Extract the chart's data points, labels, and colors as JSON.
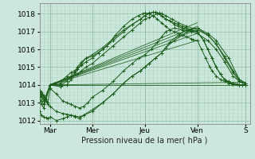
{
  "title": "",
  "xlabel": "Pression niveau de la mer( hPa )",
  "ylabel": "",
  "bg_color": "#cce8dc",
  "grid_color_minor": "#b0d4c4",
  "grid_color_major": "#90bca8",
  "line_color": "#1a5c18",
  "xlim": [
    0.0,
    5.0
  ],
  "ylim": [
    1011.8,
    1018.6
  ],
  "yticks": [
    1012,
    1013,
    1014,
    1015,
    1016,
    1017,
    1018
  ],
  "xtick_labels": [
    "Mar",
    "Mer",
    "Jeu",
    "Ven",
    "S"
  ],
  "xtick_positions": [
    0.25,
    1.25,
    2.5,
    3.75,
    4.9
  ],
  "day_vlines": [
    0.25,
    1.25,
    2.5,
    3.75,
    4.9
  ],
  "series": [
    {
      "x": [
        0.0,
        0.05,
        0.1,
        0.15,
        0.25,
        0.35,
        0.5,
        0.65,
        0.75,
        0.9,
        1.0,
        1.1,
        1.25,
        1.4,
        1.6,
        1.8,
        2.0,
        2.2,
        2.35,
        2.45,
        2.5,
        2.6,
        2.7,
        2.8,
        2.9,
        3.0,
        3.1,
        3.2,
        3.3,
        3.4,
        3.5,
        3.6,
        3.65,
        3.75,
        3.85,
        3.95,
        4.05,
        4.1,
        4.2,
        4.3,
        4.4,
        4.5,
        4.6,
        4.7,
        4.75,
        4.82,
        4.9
      ],
      "y": [
        1013.7,
        1013.6,
        1013.4,
        1013.2,
        1014.0,
        1014.1,
        1014.2,
        1014.5,
        1014.7,
        1014.9,
        1015.1,
        1015.3,
        1015.5,
        1015.8,
        1016.2,
        1016.8,
        1017.3,
        1017.7,
        1017.9,
        1018.0,
        1018.05,
        1018.0,
        1017.9,
        1017.7,
        1017.5,
        1017.3,
        1017.1,
        1017.0,
        1016.9,
        1016.8,
        1016.7,
        1016.6,
        1016.55,
        1016.5,
        1016.0,
        1015.5,
        1015.0,
        1014.8,
        1014.5,
        1014.3,
        1014.2,
        1014.1,
        1014.1,
        1014.05,
        1014.0,
        1014.0,
        1014.0
      ]
    },
    {
      "x": [
        0.0,
        0.05,
        0.1,
        0.25,
        0.5,
        0.75,
        0.9,
        1.0,
        1.1,
        1.25,
        1.5,
        1.75,
        2.0,
        2.2,
        2.4,
        2.5,
        2.6,
        2.7,
        2.8,
        2.85,
        2.9,
        3.0,
        3.1,
        3.2,
        3.3,
        3.4,
        3.5,
        3.6,
        3.75,
        3.9,
        4.0,
        4.1,
        4.2,
        4.3,
        4.4,
        4.5,
        4.6,
        4.75,
        4.9
      ],
      "y": [
        1013.5,
        1013.3,
        1013.1,
        1014.0,
        1014.1,
        1014.4,
        1014.6,
        1014.8,
        1015.0,
        1015.2,
        1015.7,
        1016.2,
        1016.7,
        1017.1,
        1017.5,
        1017.7,
        1017.8,
        1017.9,
        1018.0,
        1018.05,
        1017.9,
        1017.7,
        1017.6,
        1017.4,
        1017.3,
        1017.2,
        1017.1,
        1017.05,
        1017.0,
        1016.5,
        1016.0,
        1015.5,
        1015.0,
        1014.6,
        1014.3,
        1014.1,
        1014.05,
        1014.0,
        1014.0
      ]
    },
    {
      "x": [
        0.0,
        0.05,
        0.1,
        0.25,
        0.5,
        0.65,
        0.75,
        0.85,
        0.9,
        1.0,
        1.1,
        1.25,
        1.5,
        1.75,
        2.0,
        2.2,
        2.4,
        2.5,
        2.6,
        2.7,
        2.8,
        2.9,
        3.0,
        3.1,
        3.2,
        3.3,
        3.4,
        3.5,
        3.6,
        3.75,
        3.9,
        4.0,
        4.1,
        4.2,
        4.3,
        4.4,
        4.5,
        4.6,
        4.75,
        4.9
      ],
      "y": [
        1013.3,
        1013.1,
        1012.9,
        1014.0,
        1014.0,
        1014.2,
        1014.5,
        1014.8,
        1015.0,
        1015.3,
        1015.5,
        1015.6,
        1016.0,
        1016.5,
        1017.0,
        1017.4,
        1017.7,
        1017.9,
        1018.0,
        1018.1,
        1018.0,
        1017.9,
        1017.7,
        1017.6,
        1017.5,
        1017.4,
        1017.3,
        1017.2,
        1017.1,
        1017.0,
        1016.5,
        1016.0,
        1015.5,
        1015.0,
        1014.6,
        1014.3,
        1014.2,
        1014.05,
        1014.0,
        1014.0
      ]
    },
    {
      "x": [
        0.0,
        0.05,
        0.1,
        0.25,
        0.5,
        0.65,
        0.75,
        0.85,
        1.0,
        1.1,
        1.25,
        1.5,
        1.75,
        2.0,
        2.2,
        2.4,
        2.5,
        2.6,
        2.75,
        2.9,
        3.0,
        3.15,
        3.3,
        3.5,
        3.75,
        4.0,
        4.2,
        4.4,
        4.6,
        4.75,
        4.9
      ],
      "y": [
        1013.1,
        1012.9,
        1012.7,
        1014.0,
        1013.9,
        1014.0,
        1014.3,
        1014.7,
        1015.2,
        1015.5,
        1015.7,
        1016.1,
        1016.6,
        1017.1,
        1017.4,
        1017.7,
        1017.9,
        1018.05,
        1018.1,
        1018.0,
        1017.9,
        1017.7,
        1017.5,
        1017.3,
        1017.1,
        1016.8,
        1016.3,
        1015.6,
        1014.8,
        1014.3,
        1014.1
      ]
    },
    {
      "x": [
        0.0,
        0.05,
        0.1,
        0.2,
        0.25,
        0.4,
        0.55,
        0.65,
        0.75,
        0.85,
        0.95,
        1.05,
        1.15,
        1.25,
        1.5,
        1.75,
        2.0,
        2.2,
        2.35,
        2.5,
        2.65,
        2.8,
        2.9,
        3.0,
        3.1,
        3.2,
        3.4,
        3.6,
        3.75,
        4.0,
        4.2,
        4.4,
        4.6,
        4.75,
        4.9
      ],
      "y": [
        1013.6,
        1013.4,
        1013.2,
        1013.0,
        1013.8,
        1013.5,
        1013.1,
        1013.0,
        1012.9,
        1012.8,
        1012.7,
        1012.8,
        1013.0,
        1013.3,
        1013.7,
        1014.2,
        1014.8,
        1015.2,
        1015.5,
        1015.7,
        1016.0,
        1016.4,
        1016.7,
        1017.0,
        1017.1,
        1017.2,
        1017.1,
        1017.0,
        1016.9,
        1016.5,
        1016.0,
        1015.3,
        1014.5,
        1014.2,
        1014.1
      ]
    },
    {
      "x": [
        0.0,
        0.05,
        0.1,
        0.15,
        0.2,
        0.25,
        0.4,
        0.55,
        0.65,
        0.75,
        0.85,
        0.95,
        1.05,
        1.25,
        1.5,
        1.75,
        2.0,
        2.2,
        2.4,
        2.5,
        2.6,
        2.75,
        2.9,
        3.0,
        3.1,
        3.3,
        3.5,
        3.75,
        4.0,
        4.2,
        4.4,
        4.6,
        4.75,
        4.9
      ],
      "y": [
        1012.5,
        1012.3,
        1012.2,
        1012.15,
        1012.1,
        1012.2,
        1012.0,
        1012.1,
        1012.2,
        1012.3,
        1012.2,
        1012.1,
        1012.3,
        1012.6,
        1013.0,
        1013.5,
        1014.1,
        1014.5,
        1014.8,
        1015.0,
        1015.2,
        1015.5,
        1015.8,
        1016.1,
        1016.4,
        1016.8,
        1017.1,
        1017.2,
        1016.8,
        1016.3,
        1015.5,
        1014.7,
        1014.2,
        1014.0
      ]
    },
    {
      "x": [
        0.0,
        0.05,
        0.1,
        0.15,
        0.2,
        0.25,
        0.4,
        0.55,
        0.65,
        0.75,
        0.85,
        0.95,
        1.05,
        1.25,
        1.5,
        1.75,
        2.0,
        2.2,
        2.4,
        2.5,
        2.6,
        2.75,
        2.9,
        3.0,
        3.2,
        3.4,
        3.5,
        3.6,
        3.75,
        4.0,
        4.2,
        4.5,
        4.75,
        4.9
      ],
      "y": [
        1013.7,
        1013.5,
        1013.3,
        1013.1,
        1012.9,
        1012.8,
        1012.5,
        1012.4,
        1012.35,
        1012.3,
        1012.25,
        1012.2,
        1012.3,
        1012.5,
        1013.0,
        1013.5,
        1014.1,
        1014.5,
        1014.8,
        1015.0,
        1015.2,
        1015.5,
        1015.8,
        1016.1,
        1016.5,
        1016.8,
        1017.0,
        1017.1,
        1017.2,
        1016.9,
        1016.5,
        1015.5,
        1014.3,
        1014.1
      ]
    }
  ],
  "straight_lines": [
    {
      "x": [
        0.25,
        4.9
      ],
      "y": [
        1014.0,
        1014.0
      ]
    },
    {
      "x": [
        0.25,
        4.9
      ],
      "y": [
        1014.0,
        1014.15
      ]
    },
    {
      "x": [
        0.25,
        3.75
      ],
      "y": [
        1014.0,
        1016.5
      ]
    },
    {
      "x": [
        0.25,
        3.75
      ],
      "y": [
        1014.0,
        1016.9
      ]
    },
    {
      "x": [
        0.25,
        3.75
      ],
      "y": [
        1014.0,
        1017.1
      ]
    },
    {
      "x": [
        0.25,
        3.75
      ],
      "y": [
        1014.0,
        1017.3
      ]
    },
    {
      "x": [
        0.25,
        3.75
      ],
      "y": [
        1014.0,
        1017.5
      ]
    }
  ]
}
